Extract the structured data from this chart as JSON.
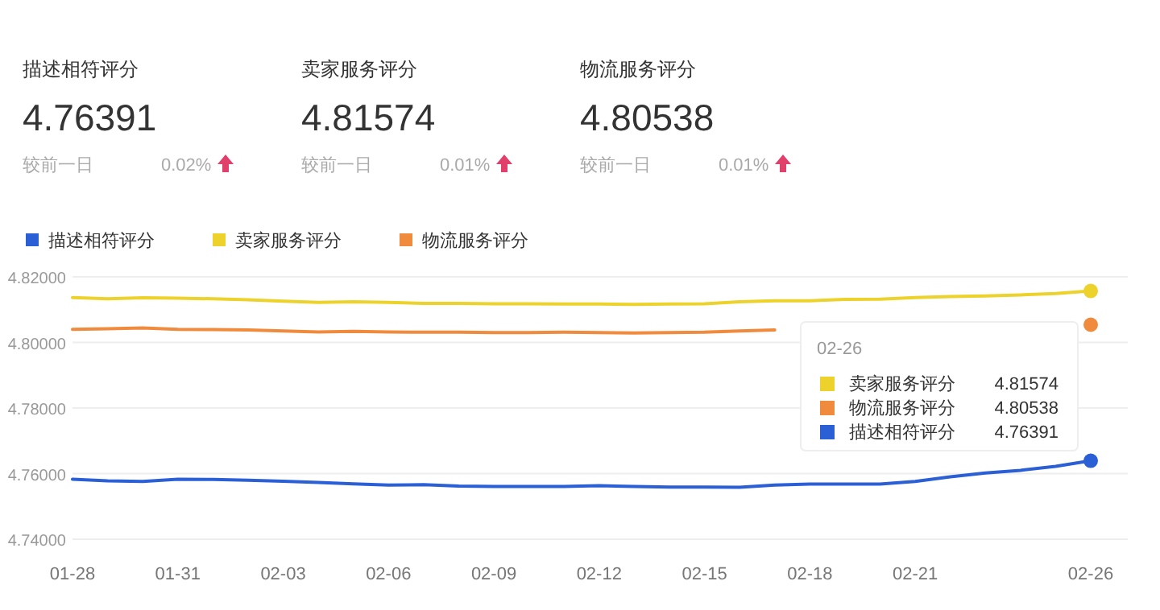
{
  "chart_data": {
    "type": "line",
    "categories": [
      "01-28",
      null,
      null,
      "01-31",
      null,
      null,
      "02-03",
      null,
      null,
      "02-06",
      null,
      null,
      "02-09",
      null,
      null,
      "02-12",
      null,
      null,
      "02-15",
      null,
      null,
      "02-18",
      null,
      null,
      "02-21",
      null,
      null,
      null,
      null,
      "02-26"
    ],
    "series": [
      {
        "name": "描述相符评分",
        "color": "#2a5fd6",
        "values": [
          4.7583,
          4.7578,
          4.7576,
          4.7583,
          4.7582,
          4.758,
          4.7577,
          4.7573,
          4.7569,
          4.7565,
          4.7566,
          4.7562,
          4.7561,
          4.7561,
          4.7561,
          4.7563,
          4.7561,
          4.7559,
          4.7559,
          4.7558,
          4.7565,
          4.7568,
          4.7568,
          4.7568,
          4.7576,
          4.759,
          4.7602,
          4.761,
          4.7622,
          4.7639
        ]
      },
      {
        "name": "卖家服务评分",
        "color": "#ecd22b",
        "values": [
          4.8137,
          4.8133,
          4.8136,
          4.8135,
          4.8133,
          4.813,
          4.8126,
          4.8122,
          4.8124,
          4.8122,
          4.8119,
          4.8119,
          4.8118,
          4.8118,
          4.8117,
          4.8117,
          4.8116,
          4.8117,
          4.8118,
          4.8124,
          4.8127,
          4.8127,
          4.8131,
          4.8132,
          4.8137,
          4.814,
          4.8142,
          4.8145,
          4.8149,
          4.8157
        ]
      },
      {
        "name": "物流服务评分",
        "color": "#f08a3c",
        "values": [
          4.804,
          4.8042,
          4.8044,
          4.804,
          4.8039,
          4.8038,
          4.8035,
          4.8032,
          4.8034,
          4.8032,
          4.8031,
          4.8031,
          4.803,
          4.803,
          4.8031,
          4.803,
          4.8029,
          4.803,
          4.8031,
          4.8035,
          4.8038,
          null,
          null,
          null,
          null,
          null,
          null,
          null,
          null,
          4.8054
        ]
      }
    ],
    "ylim": [
      4.74,
      4.82
    ],
    "yticks": [
      {
        "value": 4.74,
        "label": "4.74000"
      },
      {
        "value": 4.76,
        "label": "4.76000"
      },
      {
        "value": 4.78,
        "label": "4.78000"
      },
      {
        "value": 4.8,
        "label": "4.80000"
      },
      {
        "value": 4.82,
        "label": "4.82000"
      }
    ],
    "grid": "y",
    "legend": "top left",
    "annotations": [
      "02-26",
      "4.76391",
      "4.81574",
      "4.80538",
      "较前一日",
      "较前一日",
      "较前一日",
      "0.02%",
      "0.01%",
      "0.01%"
    ]
  }
}
